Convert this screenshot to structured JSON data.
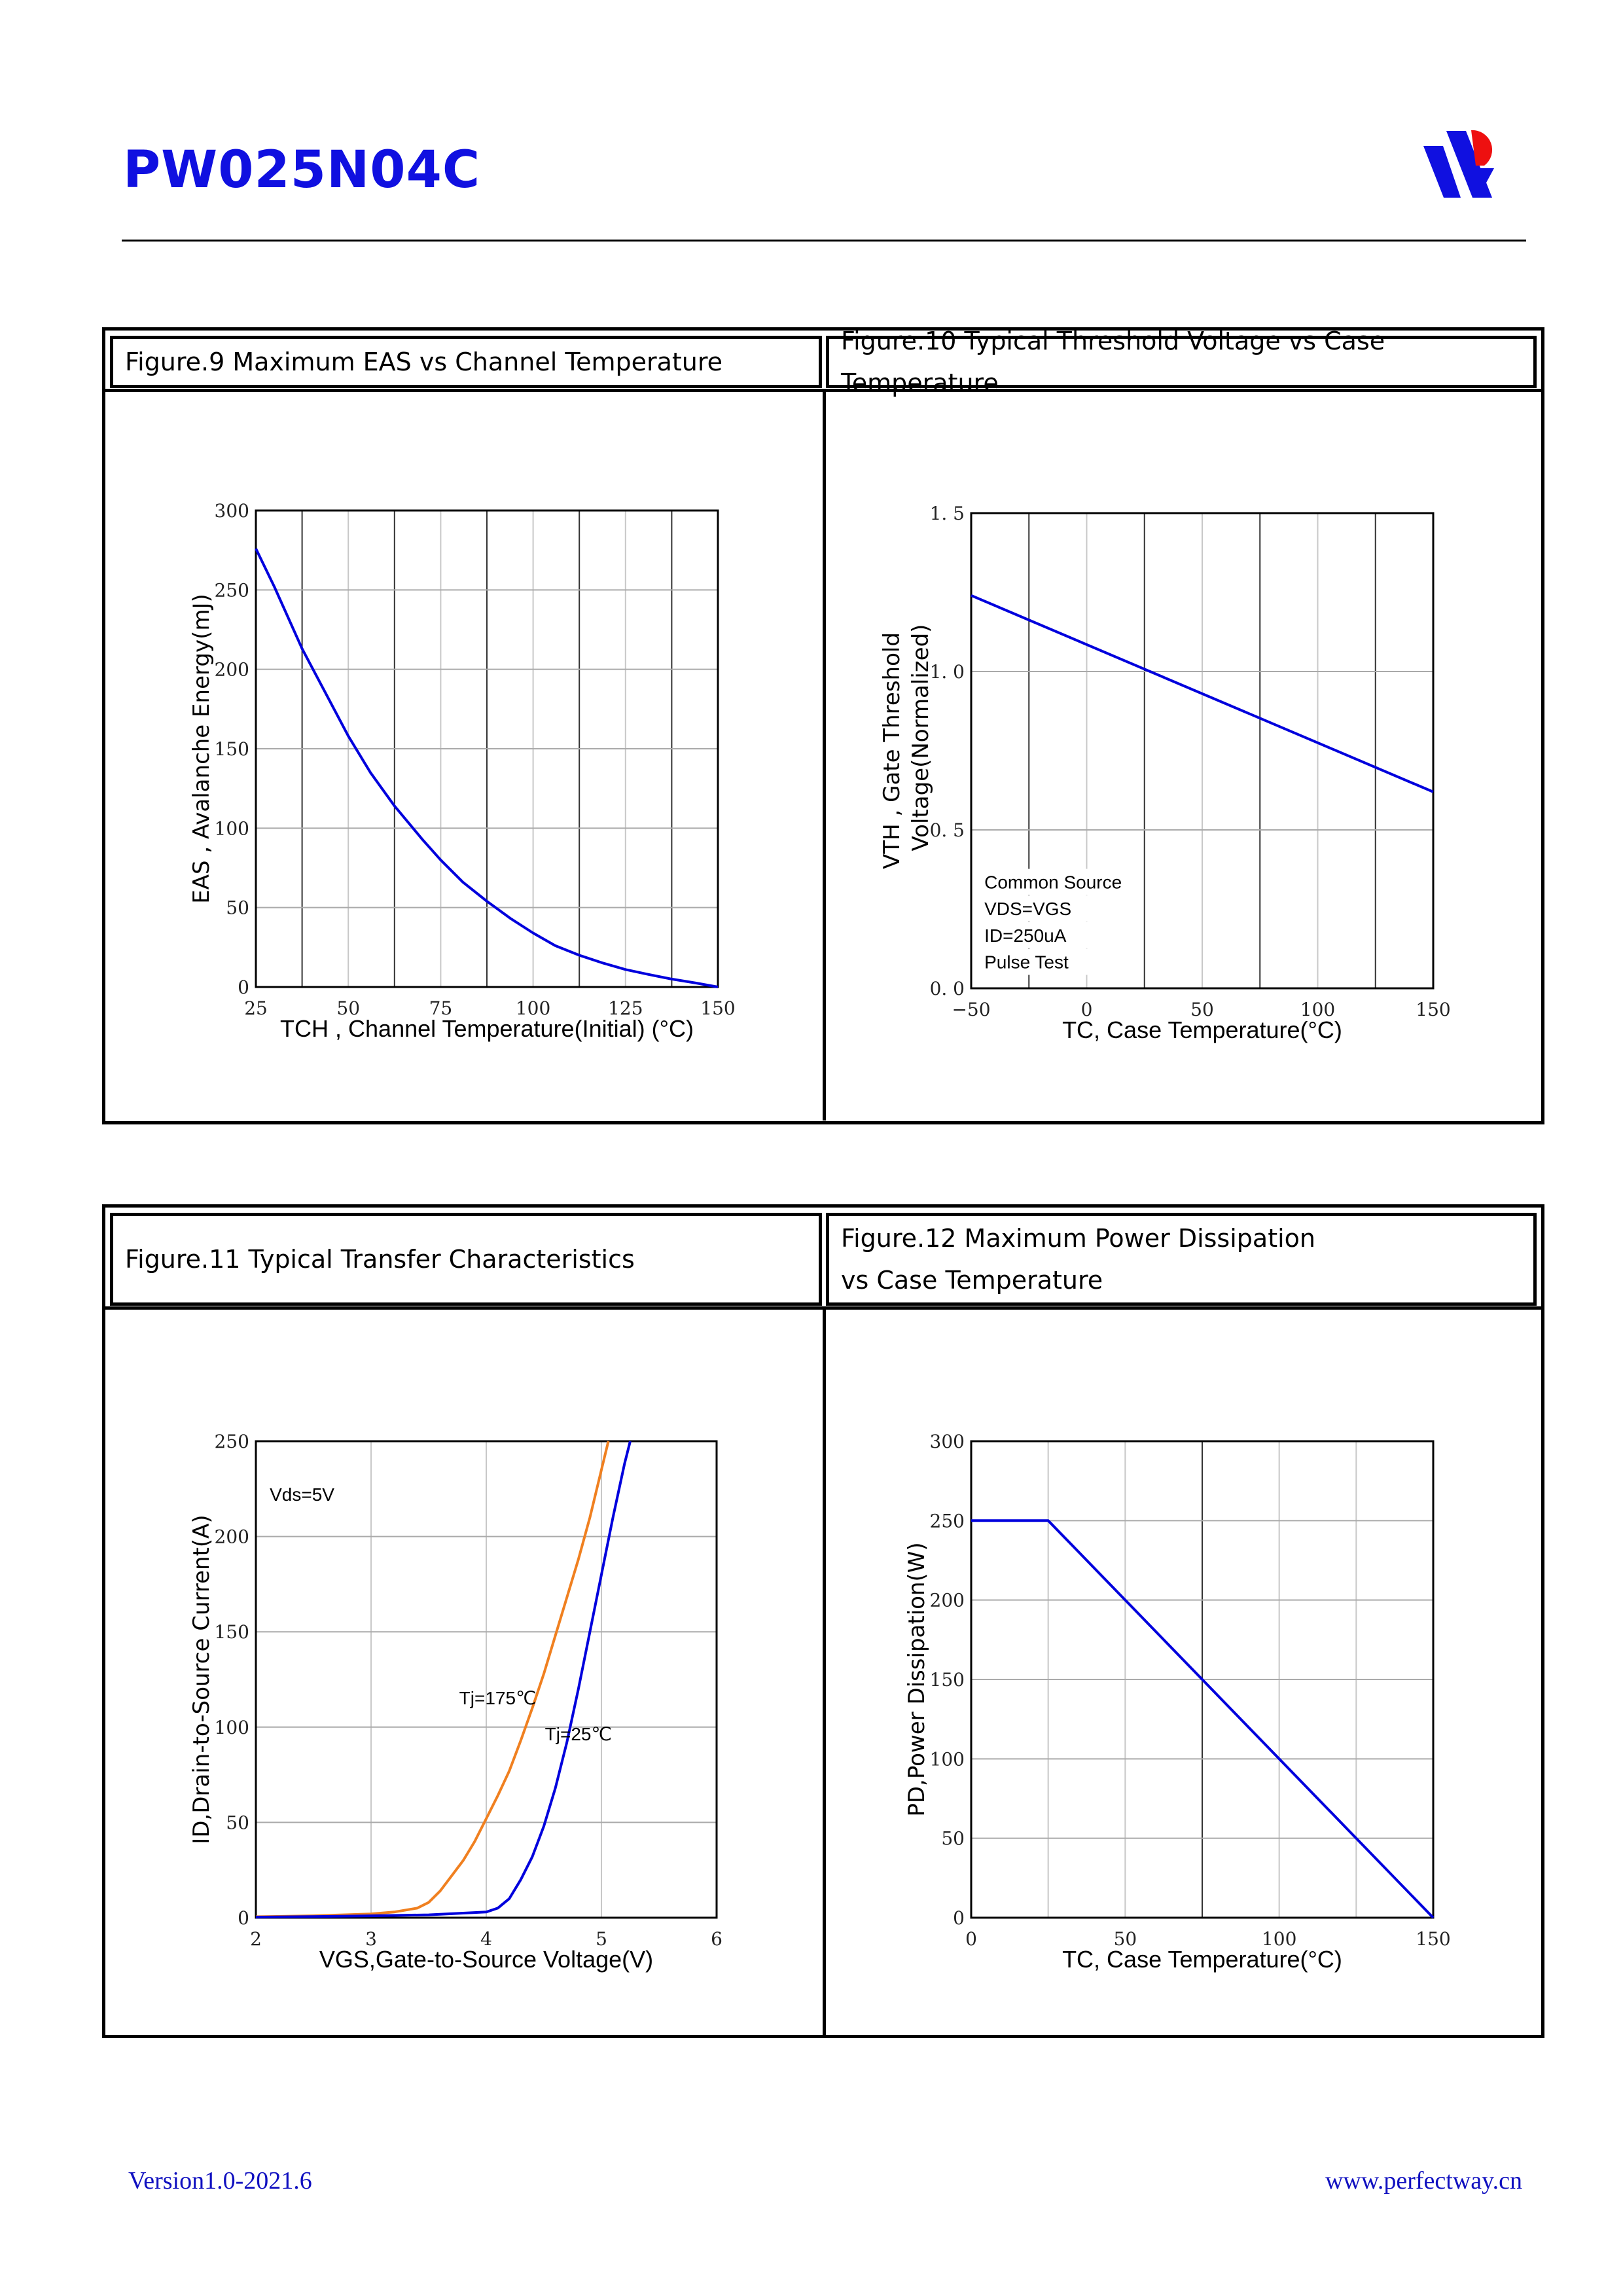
{
  "header": {
    "title": "PW025N04C",
    "logo": "perfectway-logo"
  },
  "footer": {
    "version": "Version1.0-2021.6",
    "website": "www.perfectway.cn"
  },
  "colors": {
    "blue": "#0000dd",
    "orange": "#f08020",
    "title": "#1010e0"
  },
  "figures": {
    "fig9": {
      "title": "Figure.9 Maximum EAS vs Channel Temperature"
    },
    "fig10": {
      "title": "Figure.10 Typical Threshold Voltage vs Case Temperature"
    },
    "fig11": {
      "title": "Figure.11 Typical Transfer Characteristics"
    },
    "fig12": {
      "title_line1": "Figure.12 Maximum Power Dissipation",
      "title_line2": "vs Case Temperature"
    }
  },
  "chart_data": [
    {
      "id": "fig9",
      "type": "line",
      "title": "Figure.9 Maximum EAS vs Channel Temperature",
      "xlabel": "TCH , Channel Temperature(Initial) (°C)",
      "ylabel": "EAS , Avalanche Energy(mJ)",
      "xlim": [
        25,
        150
      ],
      "ylim": [
        0,
        300
      ],
      "xticks": [
        "25",
        "50",
        "75",
        "100",
        "125",
        "150"
      ],
      "yticks": [
        "0",
        "50",
        "100",
        "150",
        "200",
        "250",
        "300"
      ],
      "xgrid_step": 12.5,
      "ygrid_step": 50,
      "grid": true,
      "annotations": [],
      "series": [
        {
          "name": "EAS",
          "color": "#0000dd",
          "x": [
            25,
            30,
            37.5,
            45,
            50,
            56,
            62.5,
            70,
            75,
            81,
            87.5,
            94,
            100,
            106,
            112.5,
            119,
            125,
            131,
            137.5,
            144,
            150
          ],
          "y": [
            276,
            252,
            213,
            180,
            158,
            135,
            114,
            93,
            80,
            66,
            54,
            43,
            34,
            26,
            20,
            15,
            11,
            8,
            5,
            2.5,
            0
          ]
        }
      ]
    },
    {
      "id": "fig10",
      "type": "line",
      "title": "Figure.10 Typical Threshold Voltage vs Case Temperature",
      "xlabel": "TC, Case Temperature(°C)",
      "ylabel": "VTH , Gate Threshold",
      "ylabel2": "Voltage(Normalized)",
      "xlim": [
        -50,
        150
      ],
      "ylim": [
        0,
        1.5
      ],
      "xticks": [
        "−50",
        "0",
        "50",
        "100",
        "150"
      ],
      "yticks": [
        "0. 0",
        "0. 5",
        "1. 0",
        "1. 5"
      ],
      "xgrid_step": 25,
      "ygrid_step": 0.5,
      "grid": true,
      "annotations": [
        "Common Source",
        "VDS=VGS",
        "ID=250uA",
        "Pulse Test"
      ],
      "series": [
        {
          "name": "VTH",
          "color": "#0000dd",
          "x": [
            -50,
            150
          ],
          "y": [
            1.24,
            0.62
          ]
        }
      ]
    },
    {
      "id": "fig11",
      "type": "line",
      "title": "Figure.11 Typical Transfer Characteristics",
      "xlabel": "VGS,Gate-to-Source Voltage(V)",
      "ylabel": "ID,Drain-to-Source Current(A)",
      "xlim": [
        2,
        6
      ],
      "ylim": [
        0,
        250
      ],
      "xticks": [
        "2",
        "3",
        "4",
        "5",
        "6"
      ],
      "yticks": [
        "0",
        "50",
        "100",
        "150",
        "200",
        "250"
      ],
      "xgrid_step": 1,
      "ygrid_step": 50,
      "grid": true,
      "annotations": [
        "Vds=5V"
      ],
      "series": [
        {
          "name": "Tj=175℃",
          "color": "#f08020",
          "x": [
            2,
            2.5,
            3,
            3.2,
            3.4,
            3.5,
            3.6,
            3.7,
            3.8,
            3.9,
            4.0,
            4.1,
            4.2,
            4.3,
            4.4,
            4.5,
            4.6,
            4.7,
            4.8,
            4.9,
            5.0,
            5.06
          ],
          "y": [
            0.5,
            1,
            2,
            3,
            5,
            8,
            14,
            22,
            30,
            40,
            52,
            64,
            77,
            93,
            110,
            128,
            148,
            168,
            188,
            210,
            235,
            250
          ]
        },
        {
          "name": "Tj=25℃",
          "color": "#0000dd",
          "x": [
            2,
            2.5,
            3,
            3.5,
            4.0,
            4.1,
            4.2,
            4.3,
            4.4,
            4.5,
            4.6,
            4.7,
            4.8,
            4.9,
            5.0,
            5.1,
            5.2,
            5.25
          ],
          "y": [
            0.3,
            0.6,
            1,
            1.5,
            3,
            5,
            10,
            20,
            32,
            48,
            68,
            92,
            120,
            150,
            180,
            210,
            238,
            250
          ]
        }
      ]
    },
    {
      "id": "fig12",
      "type": "line",
      "title": "Figure.12 Maximum Power Dissipation vs Case Temperature",
      "xlabel": "TC, Case Temperature(°C)",
      "ylabel": "PD,Power Dissipation(W)",
      "xlim": [
        0,
        150
      ],
      "ylim": [
        0,
        300
      ],
      "xticks": [
        "0",
        "50",
        "100",
        "150"
      ],
      "yticks": [
        "0",
        "50",
        "100",
        "150",
        "200",
        "250",
        "300"
      ],
      "xgrid_step": 25,
      "ygrid_step": 50,
      "grid": true,
      "annotations": [],
      "series": [
        {
          "name": "PD",
          "color": "#0000dd",
          "x": [
            0,
            25,
            150
          ],
          "y": [
            250,
            250,
            0
          ]
        }
      ]
    }
  ]
}
